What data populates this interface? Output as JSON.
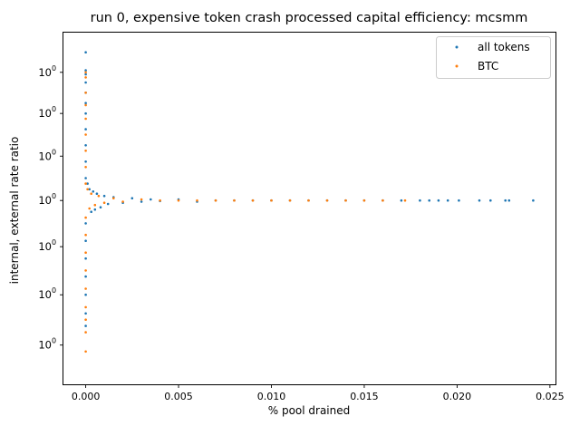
{
  "chart_data": {
    "type": "scatter",
    "title": "run 0, expensive token crash processed capital efficiency: mcsmm",
    "xlabel": "% pool drained",
    "ylabel": "internal, external rate ratio",
    "y_scale": "log",
    "xlim": [
      -0.0012,
      0.0253
    ],
    "ylim": [
      0.85,
      1.16
    ],
    "x_ticks": [
      0.0,
      0.005,
      0.01,
      0.015,
      0.02,
      0.025
    ],
    "x_tick_labels": [
      "0.000",
      "0.005",
      "0.010",
      "0.015",
      "0.020",
      "0.025"
    ],
    "y_ticks": [
      0.88,
      0.92,
      0.96,
      1.0,
      1.04,
      1.08,
      1.12
    ],
    "y_tick_base": "10",
    "y_tick_exponent": "0",
    "grid": false,
    "legend_position": "top-right",
    "series": [
      {
        "name": "all tokens",
        "color": "#1f77b4",
        "points": [
          [
            0.0,
            1.14
          ],
          [
            0.0,
            1.122
          ],
          [
            0.0,
            1.118
          ],
          [
            0.0,
            1.11
          ],
          [
            0.0,
            1.1
          ],
          [
            0.0,
            1.09
          ],
          [
            0.0,
            1.08
          ],
          [
            0.0,
            1.065
          ],
          [
            0.0,
            1.05
          ],
          [
            0.0,
            1.035
          ],
          [
            0.0,
            1.02
          ],
          [
            0.0,
            0.98
          ],
          [
            0.0,
            0.965
          ],
          [
            0.0,
            0.95
          ],
          [
            0.0,
            0.935
          ],
          [
            0.0,
            0.92
          ],
          [
            0.0,
            0.905
          ],
          [
            0.0,
            0.895
          ],
          [
            0.0001,
            1.015
          ],
          [
            0.0002,
            1.01
          ],
          [
            0.0003,
            0.99
          ],
          [
            0.0004,
            1.008
          ],
          [
            0.0005,
            0.992
          ],
          [
            0.0006,
            1.006
          ],
          [
            0.0008,
            0.994
          ],
          [
            0.001,
            1.004
          ],
          [
            0.0012,
            0.997
          ],
          [
            0.0015,
            1.003
          ],
          [
            0.002,
            0.998
          ],
          [
            0.0025,
            1.002
          ],
          [
            0.003,
            0.999
          ],
          [
            0.0035,
            1.001
          ],
          [
            0.004,
            0.9995
          ],
          [
            0.005,
            1.001
          ],
          [
            0.006,
            0.999
          ],
          [
            0.007,
            1.0
          ],
          [
            0.008,
            1.0
          ],
          [
            0.009,
            1.0
          ],
          [
            0.01,
            1.0
          ],
          [
            0.011,
            1.0
          ],
          [
            0.012,
            1.0
          ],
          [
            0.013,
            1.0
          ],
          [
            0.014,
            1.0
          ],
          [
            0.015,
            1.0
          ],
          [
            0.016,
            1.0
          ],
          [
            0.017,
            1.0
          ],
          [
            0.018,
            1.0
          ],
          [
            0.0185,
            1.0
          ],
          [
            0.019,
            1.0
          ],
          [
            0.0195,
            1.0
          ],
          [
            0.0201,
            1.0
          ],
          [
            0.0212,
            1.0
          ],
          [
            0.0218,
            1.0
          ],
          [
            0.0226,
            1.0
          ],
          [
            0.0228,
            1.0
          ],
          [
            0.0241,
            1.0
          ]
        ]
      },
      {
        "name": "BTC",
        "color": "#ff7f0e",
        "points": [
          [
            0.0,
            1.12
          ],
          [
            0.0,
            1.115
          ],
          [
            0.0,
            1.1
          ],
          [
            0.0,
            1.088
          ],
          [
            0.0,
            1.075
          ],
          [
            0.0,
            1.06
          ],
          [
            0.0,
            1.045
          ],
          [
            0.0,
            1.03
          ],
          [
            0.0,
            1.015
          ],
          [
            0.0,
            0.985
          ],
          [
            0.0,
            0.97
          ],
          [
            0.0,
            0.955
          ],
          [
            0.0,
            0.94
          ],
          [
            0.0,
            0.925
          ],
          [
            0.0,
            0.91
          ],
          [
            0.0,
            0.9
          ],
          [
            0.0,
            0.89
          ],
          [
            0.0,
            0.875
          ],
          [
            0.0001,
            1.01
          ],
          [
            0.0002,
            0.993
          ],
          [
            0.0003,
            1.006
          ],
          [
            0.0005,
            0.996
          ],
          [
            0.0007,
            1.004
          ],
          [
            0.001,
            0.998
          ],
          [
            0.0015,
            1.002
          ],
          [
            0.002,
            0.999
          ],
          [
            0.003,
            1.001
          ],
          [
            0.004,
            1.0
          ],
          [
            0.005,
            1.0
          ],
          [
            0.006,
            1.0
          ],
          [
            0.007,
            1.0
          ],
          [
            0.008,
            1.0
          ],
          [
            0.009,
            1.0
          ],
          [
            0.01,
            1.0
          ],
          [
            0.011,
            1.0
          ],
          [
            0.012,
            1.0
          ],
          [
            0.013,
            1.0
          ],
          [
            0.014,
            1.0
          ],
          [
            0.015,
            1.0
          ],
          [
            0.016,
            1.0
          ],
          [
            0.0172,
            1.0
          ]
        ]
      }
    ]
  }
}
